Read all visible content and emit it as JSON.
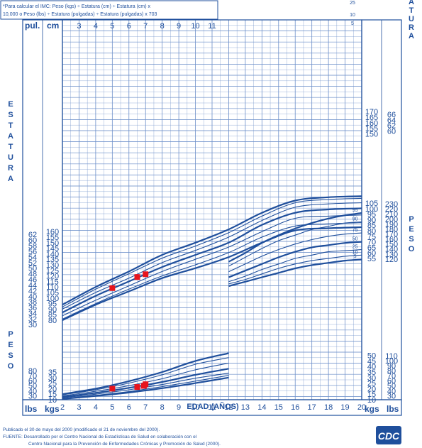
{
  "colors": {
    "ink": "#1f4f9c",
    "grid": "#6d8fc9",
    "marker": "#e8141c",
    "paper": "#ffffff"
  },
  "header": {
    "bmi_note": [
      "*Para calcular el IMC: Peso (kgs) ÷ Estatura (cm) ÷ Estatura (cm) x",
      "10,000 o Peso (lbs) ÷ Estatura (pulgadas) ÷ Estatura (pulgadas) x 703"
    ]
  },
  "labels": {
    "pul": "pul.",
    "cm": "cm",
    "lbs": "lbs",
    "kgs": "kgs",
    "estatura_left": [
      "E",
      "S",
      "T",
      "A",
      "T",
      "U",
      "R",
      "A"
    ],
    "estatura_right_top": [
      "A",
      "T",
      "U",
      "R",
      "A"
    ],
    "peso_left": [
      "P",
      "E",
      "S",
      "O"
    ],
    "peso_right": [
      "P",
      "E",
      "S",
      "O"
    ],
    "x_title": "EDAD (AÑOS)"
  },
  "footer": {
    "lines": [
      "Publicado el 30 de mayo del 2000 (modificado el 21 de noviembre del 2000).",
      "FUENTE: Desarrollado por el Centro Nacional de Estadísticas de Salud en colaboración con el",
      "Centro Nacional para la Prevención de Enfermedades Crónicas y Promoción de Salud (2000)."
    ],
    "logo_text": "CDC"
  },
  "chart_data": {
    "type": "line",
    "x": {
      "label": "EDAD (AÑOS)",
      "range": [
        2,
        20
      ],
      "ticks": [
        2,
        3,
        4,
        5,
        6,
        7,
        8,
        9,
        10,
        11,
        12,
        13,
        14,
        15,
        16,
        17,
        18,
        19,
        20
      ],
      "top_ticks": [
        3,
        4,
        5,
        6,
        7,
        8,
        9,
        10,
        11
      ]
    },
    "stature": {
      "unit_cm_ticks": [
        80,
        85,
        90,
        95,
        100,
        105,
        110,
        115,
        120,
        125,
        130,
        135,
        140,
        145,
        150,
        155,
        160
      ],
      "unit_in_ticks": [
        30,
        32,
        34,
        36,
        38,
        40,
        42,
        44,
        46,
        48,
        50,
        52,
        54,
        56,
        58,
        60,
        62
      ],
      "right_cm_ticks": [
        150,
        155,
        160,
        165,
        170
      ],
      "right_in_ticks": [
        60,
        62,
        64,
        66
      ],
      "percentile_labels": [
        "5",
        "10",
        "25"
      ],
      "series": [
        {
          "name": "5",
          "x": [
            2,
            4,
            6,
            8,
            10,
            12,
            14,
            16,
            18,
            20
          ],
          "values": [
            80,
            94,
            106,
            118,
            127,
            137,
            150,
            161,
            163,
            164
          ]
        },
        {
          "name": "10",
          "x": [
            2,
            4,
            6,
            8,
            10,
            12,
            14,
            16,
            18,
            20
          ],
          "values": [
            81,
            95,
            108,
            120,
            130,
            141,
            155,
            165,
            167,
            168
          ]
        },
        {
          "name": "25",
          "x": [
            2,
            4,
            6,
            8,
            10,
            12,
            14,
            16,
            18,
            20
          ],
          "values": [
            84,
            98,
            111,
            124,
            135,
            146,
            160,
            172,
            174,
            175
          ]
        },
        {
          "name": "50",
          "x": [
            2,
            4,
            6,
            8,
            10,
            12,
            14,
            16,
            18,
            20
          ],
          "values": [
            87,
            102,
            115,
            128,
            139,
            150,
            166,
            177,
            180,
            181
          ]
        },
        {
          "name": "75",
          "x": [
            2,
            4,
            6,
            8,
            10,
            12,
            14,
            16,
            18,
            20
          ],
          "values": [
            90,
            105,
            118,
            132,
            143,
            155,
            170,
            182,
            185,
            186
          ]
        },
        {
          "name": "90",
          "x": [
            2,
            4,
            6,
            8,
            10,
            12,
            14,
            16,
            18,
            20
          ],
          "values": [
            92,
            108,
            122,
            136,
            147,
            159,
            174,
            186,
            189,
            190
          ]
        },
        {
          "name": "95",
          "x": [
            2,
            4,
            6,
            8,
            10,
            12,
            14,
            16,
            18,
            20
          ],
          "values": [
            94,
            110,
            124,
            139,
            150,
            162,
            177,
            188,
            191,
            192
          ]
        }
      ],
      "points": [
        {
          "x": 5,
          "y": 109
        },
        {
          "x": 6.5,
          "y": 119
        },
        {
          "x": 7,
          "y": 121.5
        }
      ]
    },
    "weight_upper": {
      "kg_ticks": [
        55,
        60,
        65,
        70,
        75,
        80,
        85,
        90,
        95,
        100,
        105
      ],
      "lb_ticks": [
        120,
        130,
        140,
        150,
        160,
        170,
        180,
        190,
        200,
        210,
        220,
        230
      ],
      "percentile_labels": [
        "5",
        "10",
        "25",
        "50",
        "75",
        "90",
        "95"
      ],
      "series": [
        {
          "name": "5",
          "x": [
            12,
            13,
            14,
            15,
            16,
            17,
            18,
            19,
            20
          ],
          "values": [
            30,
            34,
            38,
            42,
            46,
            49,
            51,
            53,
            54
          ]
        },
        {
          "name": "10",
          "x": [
            12,
            13,
            14,
            15,
            16,
            17,
            18,
            19,
            20
          ],
          "values": [
            32,
            36,
            41,
            46,
            50,
            53,
            55,
            57,
            58
          ]
        },
        {
          "name": "25",
          "x": [
            12,
            13,
            14,
            15,
            16,
            17,
            18,
            19,
            20
          ],
          "values": [
            34,
            39,
            45,
            50,
            55,
            58,
            61,
            62,
            63
          ]
        },
        {
          "name": "50",
          "x": [
            12,
            13,
            14,
            15,
            16,
            17,
            18,
            19,
            20
          ],
          "values": [
            38,
            44,
            50,
            56,
            61,
            65,
            67,
            69,
            70
          ]
        },
        {
          "name": "75",
          "x": [
            12,
            13,
            14,
            15,
            16,
            17,
            18,
            19,
            20
          ],
          "values": [
            43,
            50,
            57,
            63,
            68,
            72,
            75,
            77,
            78
          ]
        },
        {
          "name": "90",
          "x": [
            12,
            13,
            14,
            15,
            16,
            17,
            18,
            19,
            20
          ],
          "values": [
            48,
            56,
            64,
            71,
            76,
            81,
            84,
            87,
            88
          ]
        },
        {
          "name": "95",
          "x": [
            12,
            13,
            14,
            15,
            16,
            17,
            18,
            19,
            20
          ],
          "values": [
            52,
            60,
            69,
            76,
            82,
            87,
            91,
            94,
            96
          ]
        }
      ]
    },
    "weight_lower": {
      "kg_ticks": [
        10,
        15,
        20,
        25,
        30,
        35
      ],
      "lb_ticks": [
        30,
        40,
        50,
        60,
        70,
        80
      ],
      "right_kg_ticks": [
        10,
        15,
        20,
        25,
        30,
        35,
        40,
        45,
        50
      ],
      "right_lb_ticks": [
        30,
        40,
        50,
        60,
        70,
        80,
        90,
        100,
        110
      ],
      "series": [
        {
          "name": "5",
          "x": [
            2,
            4,
            6,
            8,
            10,
            12
          ],
          "values": [
            10.7,
            13.4,
            16.5,
            20.4,
            25,
            30
          ]
        },
        {
          "name": "10",
          "x": [
            2,
            4,
            6,
            8,
            10,
            12
          ],
          "values": [
            11.1,
            14,
            17.4,
            21.8,
            26.8,
            32
          ]
        },
        {
          "name": "25",
          "x": [
            2,
            4,
            6,
            8,
            10,
            12
          ],
          "values": [
            11.8,
            15,
            19,
            23.7,
            29.4,
            34
          ]
        },
        {
          "name": "50",
          "x": [
            2,
            4,
            6,
            8,
            10,
            12
          ],
          "values": [
            12.6,
            16.2,
            20.7,
            26,
            32.5,
            38
          ]
        },
        {
          "name": "75",
          "x": [
            2,
            4,
            6,
            8,
            10,
            12
          ],
          "values": [
            13.5,
            17.6,
            22.7,
            29,
            37,
            43
          ]
        },
        {
          "name": "90",
          "x": [
            2,
            4,
            6,
            8,
            10,
            12
          ],
          "values": [
            14.4,
            19,
            25,
            32.5,
            42,
            48
          ]
        },
        {
          "name": "95",
          "x": [
            2,
            4,
            6,
            8,
            10,
            12
          ],
          "values": [
            15,
            20,
            26.7,
            35,
            45,
            52
          ]
        }
      ],
      "points": [
        {
          "x": 5,
          "y": 20
        },
        {
          "x": 6.5,
          "y": 21.5
        },
        {
          "x": 6.9,
          "y": 22.5
        },
        {
          "x": 7,
          "y": 24
        }
      ]
    }
  }
}
